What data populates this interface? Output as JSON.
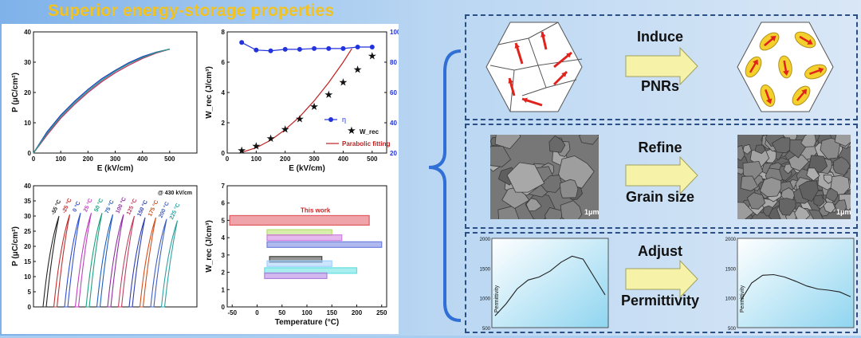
{
  "title": "Superior energy-storage properties",
  "colors": {
    "title": "#f4c21c",
    "background": "#a9cdf0",
    "box_border": "#2a4f86",
    "red_arrow": "#e0231c",
    "pnr_fill": "#f4d02c",
    "arrow_fill": "#f6f3a8"
  },
  "chart_data": [
    {
      "type": "line",
      "panel": "top-left",
      "xlabel": "E (kV/cm)",
      "ylabel": "P (μC/cm²)",
      "xlim": [
        0,
        600
      ],
      "ylim": [
        0,
        40
      ],
      "xticks": [
        "0",
        "100",
        "200",
        "300",
        "400",
        "500"
      ],
      "yticks": [
        "0",
        "10",
        "20",
        "30",
        "40"
      ],
      "grid": false,
      "series": [
        {
          "color": "#1f3fbf",
          "x": [
            0,
            50,
            100,
            150,
            200,
            250,
            300,
            350,
            400,
            450,
            500
          ],
          "y": [
            0,
            7,
            12.5,
            17,
            21,
            24.5,
            27.3,
            29.8,
            31.8,
            33.3,
            34.3
          ]
        },
        {
          "color": "#c0306a",
          "x": [
            0,
            50,
            100,
            150,
            200,
            250,
            300,
            350,
            400,
            450,
            500
          ],
          "y": [
            0,
            6,
            11.5,
            16,
            20,
            23.5,
            26.5,
            29,
            31.2,
            33,
            34.3
          ]
        },
        {
          "color": "#2a9a8a",
          "x": [
            0,
            50,
            100,
            150,
            200,
            250,
            300,
            350,
            400,
            450,
            500
          ],
          "y": [
            0,
            6.5,
            12,
            16.5,
            20.5,
            24,
            27,
            29.5,
            31.5,
            33.2,
            34.3
          ]
        }
      ]
    },
    {
      "type": "scatter",
      "panel": "top-middle",
      "xlabel": "E (kV/cm)",
      "ylabel": "W_rec (J/cm³)",
      "ylabel2": "η (%)",
      "xlim": [
        0,
        550
      ],
      "ylim": [
        0,
        8
      ],
      "y2lim": [
        20,
        100
      ],
      "xticks": [
        "0",
        "100",
        "200",
        "300",
        "400",
        "500"
      ],
      "yticks": [
        "0",
        "2",
        "4",
        "6",
        "8"
      ],
      "y2ticks": [
        "20",
        "40",
        "60",
        "80",
        "100"
      ],
      "legend": [
        "η",
        "W_rec",
        "Parabolic fitting"
      ],
      "legend_position": "bottom-right",
      "series": [
        {
          "name": "η",
          "color": "#2233dd",
          "axis": "right",
          "x": [
            50,
            100,
            150,
            200,
            250,
            300,
            350,
            400,
            450,
            500
          ],
          "y": [
            93,
            88,
            87.5,
            88.5,
            88.5,
            89,
            89,
            89,
            90,
            90
          ]
        },
        {
          "name": "W_rec",
          "color": "#111111",
          "x": [
            50,
            100,
            150,
            200,
            250,
            300,
            350,
            400,
            450,
            500
          ],
          "y": [
            0.15,
            0.45,
            0.95,
            1.55,
            2.25,
            3.05,
            3.85,
            4.65,
            5.5,
            6.4
          ]
        },
        {
          "name": "Parabolic fitting",
          "color": "#c02020",
          "x": [
            50,
            100,
            150,
            200,
            250,
            300,
            350,
            400,
            430
          ],
          "y": [
            0.05,
            0.35,
            0.85,
            1.55,
            2.4,
            3.45,
            4.65,
            6.0,
            6.9
          ]
        }
      ]
    },
    {
      "type": "line",
      "panel": "bottom-left",
      "ylabel": "P (μC/cm²)",
      "annotation": "@ 430 kV/cm",
      "ylim": [
        0,
        40
      ],
      "yticks": [
        "0",
        "5",
        "10",
        "15",
        "20",
        "25",
        "30",
        "35",
        "40"
      ],
      "temperature_labels": [
        "-55 °C",
        "-25 °C",
        "0 °C",
        "25 °C",
        "50 °C",
        "75 °C",
        "100 °C",
        "125 °C",
        "150 °C",
        "175 °C",
        "200 °C",
        "225 °C"
      ],
      "loop_colors": [
        "#222222",
        "#c03030",
        "#3050d0",
        "#c040c0",
        "#20a080",
        "#2060c0",
        "#9030a0",
        "#c04060",
        "#3040b0",
        "#d05020",
        "#4060c0",
        "#30a0a0"
      ],
      "loop_max_P": [
        30,
        30.5,
        31,
        31,
        31,
        30.5,
        30.5,
        30,
        29.5,
        29.5,
        29,
        28.5
      ]
    },
    {
      "type": "bar",
      "panel": "bottom-middle",
      "xlabel": "Temperature (°C)",
      "ylabel": "W_rec (J/cm³)",
      "xlim": [
        -60,
        260
      ],
      "ylim": [
        0,
        7
      ],
      "xticks": [
        "-50",
        "0",
        "50",
        "100",
        "150",
        "200",
        "250"
      ],
      "yticks": [
        "0",
        "1",
        "2",
        "3",
        "4",
        "5",
        "6",
        "7"
      ],
      "annotation": "This work",
      "ranges": [
        {
          "label": "This work",
          "start": -55,
          "end": 225,
          "value": 5.0,
          "color": "#e05a60"
        },
        {
          "start": 20,
          "end": 150,
          "value": 4.3,
          "color": "#b6e06a"
        },
        {
          "start": 20,
          "end": 170,
          "value": 4.0,
          "color": "#d080e0"
        },
        {
          "start": 20,
          "end": 250,
          "value": 3.6,
          "color": "#7080e0"
        },
        {
          "start": 25,
          "end": 130,
          "value": 2.75,
          "color": "#404040"
        },
        {
          "start": 20,
          "end": 150,
          "value": 2.5,
          "color": "#a0d0ff"
        },
        {
          "start": 15,
          "end": 200,
          "value": 2.1,
          "color": "#60e0e0"
        },
        {
          "start": 15,
          "end": 140,
          "value": 1.8,
          "color": "#b080e0"
        }
      ]
    },
    {
      "type": "line",
      "panel": "adjust-before",
      "ylabel": "Permittivity",
      "ylim": [
        500,
        2000
      ],
      "yticks": [
        "500",
        "1000",
        "1500",
        "2000"
      ],
      "y": [
        700,
        900,
        1150,
        1300,
        1350,
        1450,
        1600,
        1700,
        1650,
        1350,
        1050
      ]
    },
    {
      "type": "line",
      "panel": "adjust-after",
      "ylabel": "Permittivity",
      "ylim": [
        500,
        2000
      ],
      "yticks": [
        "500",
        "1000",
        "1500",
        "2000"
      ],
      "y": [
        950,
        1250,
        1380,
        1390,
        1350,
        1280,
        1200,
        1150,
        1130,
        1100,
        1020
      ]
    }
  ],
  "right": {
    "rows": [
      {
        "line1": "Induce",
        "line2": "PNRs"
      },
      {
        "line1": "Refine",
        "line2": "Grain size"
      },
      {
        "line1": "Adjust",
        "line2": "Permittivity"
      }
    ],
    "scale_label": "1μm"
  }
}
